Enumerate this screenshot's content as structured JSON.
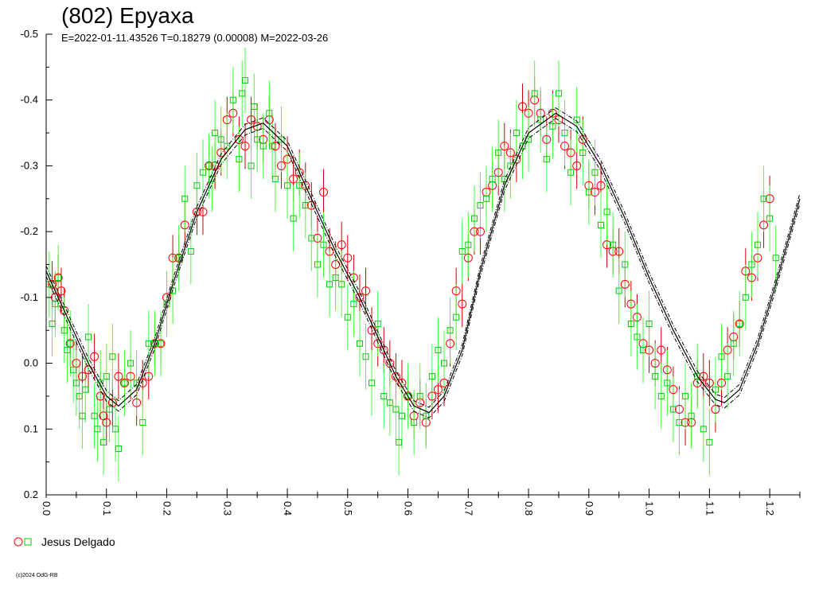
{
  "chart_data": {
    "type": "scatter",
    "title": "(802) Epyaxa",
    "subtitle": "E=2022-01-11.43526    T=0.18279 (0.00008)    M=2022-03-26",
    "xlim": [
      0.0,
      1.25
    ],
    "ylim": [
      -0.5,
      0.2
    ],
    "y_inverted": true,
    "x_ticks": [
      "0.0",
      "0.1",
      "0.2",
      "0.3",
      "0.4",
      "0.5",
      "0.6",
      "0.7",
      "0.8",
      "0.9",
      "1.0",
      "1.1",
      "1.2"
    ],
    "x_tick_values": [
      0.0,
      0.1,
      0.2,
      0.3,
      0.4,
      0.5,
      0.6,
      0.7,
      0.8,
      0.9,
      1.0,
      1.1,
      1.2
    ],
    "y_ticks": [
      "-0.5",
      "-0.4",
      "-0.3",
      "-0.2",
      "-0.1",
      "0.0",
      "0.1",
      "0.2"
    ],
    "y_tick_values": [
      -0.5,
      -0.4,
      -0.3,
      -0.2,
      -0.1,
      0.0,
      0.1,
      0.2
    ],
    "grid": false,
    "legend_position": "bottom-left",
    "fit_curve": {
      "description_points": [
        [
          0.0,
          -0.14
        ],
        [
          0.03,
          -0.08
        ],
        [
          0.07,
          0.0
        ],
        [
          0.1,
          0.05
        ],
        [
          0.12,
          0.065
        ],
        [
          0.15,
          0.04
        ],
        [
          0.18,
          -0.03
        ],
        [
          0.21,
          -0.12
        ],
        [
          0.25,
          -0.23
        ],
        [
          0.29,
          -0.31
        ],
        [
          0.33,
          -0.355
        ],
        [
          0.36,
          -0.365
        ],
        [
          0.4,
          -0.33
        ],
        [
          0.44,
          -0.25
        ],
        [
          0.48,
          -0.17
        ],
        [
          0.52,
          -0.1
        ],
        [
          0.55,
          -0.04
        ],
        [
          0.58,
          0.02
        ],
        [
          0.61,
          0.065
        ],
        [
          0.635,
          0.075
        ],
        [
          0.66,
          0.05
        ],
        [
          0.69,
          -0.02
        ],
        [
          0.72,
          -0.14
        ],
        [
          0.76,
          -0.27
        ],
        [
          0.8,
          -0.35
        ],
        [
          0.845,
          -0.38
        ],
        [
          0.88,
          -0.36
        ],
        [
          0.92,
          -0.3
        ],
        [
          0.96,
          -0.22
        ],
        [
          1.0,
          -0.13
        ],
        [
          1.04,
          -0.05
        ],
        [
          1.08,
          0.02
        ],
        [
          1.11,
          0.055
        ],
        [
          1.125,
          0.06
        ],
        [
          1.15,
          0.04
        ],
        [
          1.18,
          -0.03
        ],
        [
          1.21,
          -0.12
        ],
        [
          1.25,
          -0.25
        ]
      ],
      "band_offset": 0.008
    },
    "series": [
      {
        "name": "Jesus Delgado",
        "marker": "circle",
        "color": "#ff0000",
        "errorbar_color": "#cc0000",
        "errorbar": 0.035,
        "points": [
          [
            0.01,
            -0.12
          ],
          [
            0.015,
            -0.1
          ],
          [
            0.02,
            -0.13
          ],
          [
            0.025,
            -0.11
          ],
          [
            0.03,
            -0.08
          ],
          [
            0.04,
            -0.03
          ],
          [
            0.05,
            0.0
          ],
          [
            0.06,
            0.02
          ],
          [
            0.07,
            0.01
          ],
          [
            0.08,
            -0.01
          ],
          [
            0.09,
            0.05
          ],
          [
            0.095,
            0.08
          ],
          [
            0.1,
            0.09
          ],
          [
            0.11,
            0.06
          ],
          [
            0.12,
            0.02
          ],
          [
            0.13,
            0.03
          ],
          [
            0.14,
            0.02
          ],
          [
            0.15,
            0.06
          ],
          [
            0.16,
            0.03
          ],
          [
            0.17,
            0.02
          ],
          [
            0.18,
            -0.03
          ],
          [
            0.19,
            -0.03
          ],
          [
            0.2,
            -0.1
          ],
          [
            0.21,
            -0.16
          ],
          [
            0.22,
            -0.16
          ],
          [
            0.23,
            -0.21
          ],
          [
            0.25,
            -0.23
          ],
          [
            0.26,
            -0.23
          ],
          [
            0.27,
            -0.3
          ],
          [
            0.28,
            -0.3
          ],
          [
            0.29,
            -0.32
          ],
          [
            0.3,
            -0.37
          ],
          [
            0.31,
            -0.38
          ],
          [
            0.32,
            -0.34
          ],
          [
            0.33,
            -0.33
          ],
          [
            0.34,
            -0.37
          ],
          [
            0.35,
            -0.36
          ],
          [
            0.36,
            -0.34
          ],
          [
            0.37,
            -0.37
          ],
          [
            0.38,
            -0.33
          ],
          [
            0.39,
            -0.3
          ],
          [
            0.4,
            -0.31
          ],
          [
            0.41,
            -0.28
          ],
          [
            0.42,
            -0.29
          ],
          [
            0.43,
            -0.27
          ],
          [
            0.44,
            -0.24
          ],
          [
            0.45,
            -0.19
          ],
          [
            0.46,
            -0.26
          ],
          [
            0.47,
            -0.17
          ],
          [
            0.48,
            -0.15
          ],
          [
            0.49,
            -0.18
          ],
          [
            0.5,
            -0.16
          ],
          [
            0.51,
            -0.13
          ],
          [
            0.52,
            -0.1
          ],
          [
            0.53,
            -0.11
          ],
          [
            0.54,
            -0.05
          ],
          [
            0.55,
            -0.03
          ],
          [
            0.56,
            -0.02
          ],
          [
            0.57,
            0.0
          ],
          [
            0.58,
            0.02
          ],
          [
            0.59,
            0.03
          ],
          [
            0.6,
            0.05
          ],
          [
            0.61,
            0.08
          ],
          [
            0.62,
            0.06
          ],
          [
            0.63,
            0.09
          ],
          [
            0.64,
            0.05
          ],
          [
            0.65,
            0.04
          ],
          [
            0.66,
            0.03
          ],
          [
            0.67,
            -0.03
          ],
          [
            0.68,
            -0.11
          ],
          [
            0.69,
            -0.09
          ],
          [
            0.7,
            -0.16
          ],
          [
            0.71,
            -0.2
          ],
          [
            0.72,
            -0.2
          ],
          [
            0.73,
            -0.26
          ],
          [
            0.74,
            -0.27
          ],
          [
            0.75,
            -0.29
          ],
          [
            0.76,
            -0.33
          ],
          [
            0.77,
            -0.32
          ],
          [
            0.78,
            -0.31
          ],
          [
            0.79,
            -0.39
          ],
          [
            0.8,
            -0.38
          ],
          [
            0.81,
            -0.4
          ],
          [
            0.82,
            -0.38
          ],
          [
            0.83,
            -0.34
          ],
          [
            0.84,
            -0.38
          ],
          [
            0.85,
            -0.37
          ],
          [
            0.86,
            -0.33
          ],
          [
            0.87,
            -0.32
          ],
          [
            0.88,
            -0.3
          ],
          [
            0.89,
            -0.34
          ],
          [
            0.9,
            -0.27
          ],
          [
            0.91,
            -0.26
          ],
          [
            0.92,
            -0.27
          ],
          [
            0.93,
            -0.18
          ],
          [
            0.94,
            -0.17
          ],
          [
            0.95,
            -0.17
          ],
          [
            0.96,
            -0.12
          ],
          [
            0.97,
            -0.09
          ],
          [
            0.98,
            -0.07
          ],
          [
            0.99,
            -0.03
          ],
          [
            1.0,
            -0.02
          ],
          [
            1.01,
            0.0
          ],
          [
            1.02,
            -0.02
          ],
          [
            1.03,
            0.01
          ],
          [
            1.04,
            0.04
          ],
          [
            1.05,
            0.07
          ],
          [
            1.06,
            0.09
          ],
          [
            1.07,
            0.09
          ],
          [
            1.08,
            0.03
          ],
          [
            1.09,
            0.02
          ],
          [
            1.1,
            0.03
          ],
          [
            1.11,
            0.07
          ],
          [
            1.12,
            0.03
          ],
          [
            1.13,
            -0.02
          ],
          [
            1.14,
            -0.04
          ],
          [
            1.15,
            -0.06
          ],
          [
            1.16,
            -0.14
          ],
          [
            1.17,
            -0.13
          ],
          [
            1.18,
            -0.16
          ],
          [
            1.19,
            -0.21
          ],
          [
            1.2,
            -0.25
          ]
        ]
      },
      {
        "name": "Jesus Delgado",
        "marker": "square",
        "color": "#00cc00",
        "errorbar_color": "#44ff44",
        "errorbar": 0.05,
        "points": [
          [
            0.005,
            -0.12
          ],
          [
            0.01,
            -0.06
          ],
          [
            0.015,
            -0.09
          ],
          [
            0.02,
            -0.13
          ],
          [
            0.03,
            -0.05
          ],
          [
            0.035,
            -0.02
          ],
          [
            0.04,
            -0.03
          ],
          [
            0.045,
            0.01
          ],
          [
            0.05,
            0.03
          ],
          [
            0.055,
            0.05
          ],
          [
            0.06,
            0.08
          ],
          [
            0.065,
            0.04
          ],
          [
            0.07,
            -0.04
          ],
          [
            0.08,
            0.08
          ],
          [
            0.085,
            0.1
          ],
          [
            0.09,
            0.03
          ],
          [
            0.095,
            0.12
          ],
          [
            0.1,
            0.02
          ],
          [
            0.105,
            0.07
          ],
          [
            0.11,
            -0.01
          ],
          [
            0.115,
            0.1
          ],
          [
            0.12,
            0.13
          ],
          [
            0.13,
            0.03
          ],
          [
            0.14,
            0.0
          ],
          [
            0.15,
            0.03
          ],
          [
            0.16,
            0.09
          ],
          [
            0.17,
            -0.03
          ],
          [
            0.18,
            -0.03
          ],
          [
            0.19,
            -0.03
          ],
          [
            0.2,
            -0.09
          ],
          [
            0.21,
            -0.11
          ],
          [
            0.22,
            -0.16
          ],
          [
            0.23,
            -0.25
          ],
          [
            0.24,
            -0.17
          ],
          [
            0.25,
            -0.27
          ],
          [
            0.26,
            -0.29
          ],
          [
            0.27,
            -0.3
          ],
          [
            0.275,
            -0.28
          ],
          [
            0.28,
            -0.35
          ],
          [
            0.29,
            -0.34
          ],
          [
            0.3,
            -0.33
          ],
          [
            0.31,
            -0.4
          ],
          [
            0.32,
            -0.31
          ],
          [
            0.325,
            -0.41
          ],
          [
            0.33,
            -0.43
          ],
          [
            0.34,
            -0.3
          ],
          [
            0.345,
            -0.39
          ],
          [
            0.35,
            -0.34
          ],
          [
            0.36,
            -0.33
          ],
          [
            0.37,
            -0.38
          ],
          [
            0.375,
            -0.33
          ],
          [
            0.38,
            -0.28
          ],
          [
            0.39,
            -0.34
          ],
          [
            0.4,
            -0.27
          ],
          [
            0.41,
            -0.22
          ],
          [
            0.42,
            -0.27
          ],
          [
            0.43,
            -0.24
          ],
          [
            0.44,
            -0.19
          ],
          [
            0.45,
            -0.15
          ],
          [
            0.46,
            -0.18
          ],
          [
            0.47,
            -0.12
          ],
          [
            0.48,
            -0.13
          ],
          [
            0.49,
            -0.12
          ],
          [
            0.5,
            -0.07
          ],
          [
            0.51,
            -0.09
          ],
          [
            0.52,
            -0.03
          ],
          [
            0.53,
            -0.01
          ],
          [
            0.54,
            0.03
          ],
          [
            0.55,
            -0.06
          ],
          [
            0.56,
            0.05
          ],
          [
            0.57,
            0.06
          ],
          [
            0.58,
            0.07
          ],
          [
            0.585,
            0.12
          ],
          [
            0.59,
            0.08
          ],
          [
            0.6,
            0.05
          ],
          [
            0.61,
            0.09
          ],
          [
            0.62,
            0.05
          ],
          [
            0.63,
            0.08
          ],
          [
            0.64,
            0.02
          ],
          [
            0.65,
            -0.02
          ],
          [
            0.66,
            0.0
          ],
          [
            0.67,
            -0.05
          ],
          [
            0.68,
            -0.07
          ],
          [
            0.69,
            -0.17
          ],
          [
            0.7,
            -0.18
          ],
          [
            0.71,
            -0.22
          ],
          [
            0.72,
            -0.24
          ],
          [
            0.73,
            -0.25
          ],
          [
            0.74,
            -0.28
          ],
          [
            0.75,
            -0.32
          ],
          [
            0.76,
            -0.28
          ],
          [
            0.77,
            -0.3
          ],
          [
            0.78,
            -0.35
          ],
          [
            0.79,
            -0.33
          ],
          [
            0.8,
            -0.34
          ],
          [
            0.81,
            -0.41
          ],
          [
            0.82,
            -0.37
          ],
          [
            0.83,
            -0.31
          ],
          [
            0.84,
            -0.36
          ],
          [
            0.85,
            -0.41
          ],
          [
            0.86,
            -0.35
          ],
          [
            0.87,
            -0.29
          ],
          [
            0.88,
            -0.37
          ],
          [
            0.89,
            -0.32
          ],
          [
            0.9,
            -0.26
          ],
          [
            0.91,
            -0.29
          ],
          [
            0.92,
            -0.21
          ],
          [
            0.93,
            -0.23
          ],
          [
            0.94,
            -0.18
          ],
          [
            0.95,
            -0.11
          ],
          [
            0.96,
            -0.15
          ],
          [
            0.97,
            -0.06
          ],
          [
            0.98,
            -0.04
          ],
          [
            0.99,
            -0.02
          ],
          [
            1.0,
            -0.06
          ],
          [
            1.01,
            0.02
          ],
          [
            1.02,
            0.05
          ],
          [
            1.03,
            0.03
          ],
          [
            1.04,
            0.07
          ],
          [
            1.05,
            0.09
          ],
          [
            1.06,
            0.05
          ],
          [
            1.07,
            0.08
          ],
          [
            1.08,
            0.02
          ],
          [
            1.09,
            0.1
          ],
          [
            1.1,
            0.12
          ],
          [
            1.11,
            0.04
          ],
          [
            1.12,
            -0.01
          ],
          [
            1.13,
            0.02
          ],
          [
            1.14,
            -0.03
          ],
          [
            1.15,
            -0.06
          ],
          [
            1.16,
            -0.1
          ],
          [
            1.17,
            -0.15
          ],
          [
            1.18,
            -0.18
          ],
          [
            1.19,
            -0.25
          ],
          [
            1.2,
            -0.22
          ],
          [
            1.21,
            -0.16
          ]
        ]
      }
    ]
  },
  "legend": {
    "label": "Jesus Delgado",
    "circle_color": "#ff0000",
    "square_color": "#00cc00"
  },
  "footer": {
    "copyright": "(c)2024 OdG-RB"
  }
}
